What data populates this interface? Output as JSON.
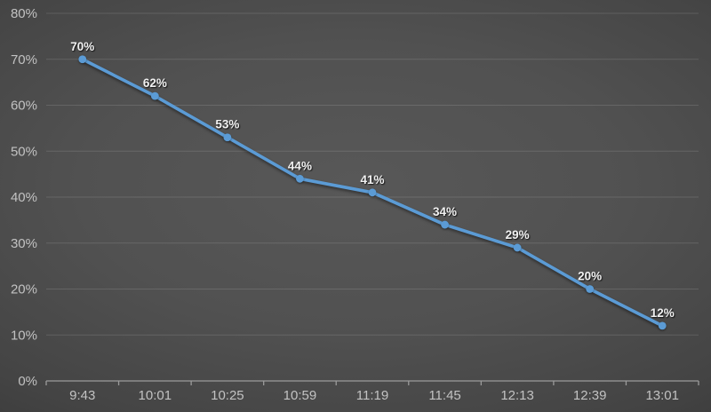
{
  "chart_data": {
    "type": "line",
    "title": "",
    "legend": "none",
    "grid": "horizontal",
    "categories": [
      "9:43",
      "10:01",
      "10:25",
      "10:59",
      "11:19",
      "11:45",
      "12:13",
      "12:39",
      "13:01"
    ],
    "values": [
      70,
      62,
      53,
      44,
      41,
      34,
      29,
      20,
      12
    ],
    "data_labels": [
      "70%",
      "62%",
      "53%",
      "44%",
      "41%",
      "34%",
      "29%",
      "20%",
      "12%"
    ],
    "x_axis": {
      "tick_labels": [
        "9:43",
        "10:01",
        "10:25",
        "10:59",
        "11:19",
        "11:45",
        "12:13",
        "12:39",
        "13:01"
      ]
    },
    "y_axis": {
      "min": 0,
      "max": 80,
      "step": 10,
      "tick_labels": [
        "0%",
        "10%",
        "20%",
        "30%",
        "40%",
        "50%",
        "60%",
        "70%",
        "80%"
      ]
    },
    "colors": {
      "line": "#5B9BD5",
      "marker": "#5B9BD5",
      "data_label_text": "#f1f1f1",
      "axis_text": "#c2c2c2",
      "axis_line": "#9b9b9b",
      "background_center": "#585858",
      "background_edge": "#1e1e1e"
    }
  }
}
